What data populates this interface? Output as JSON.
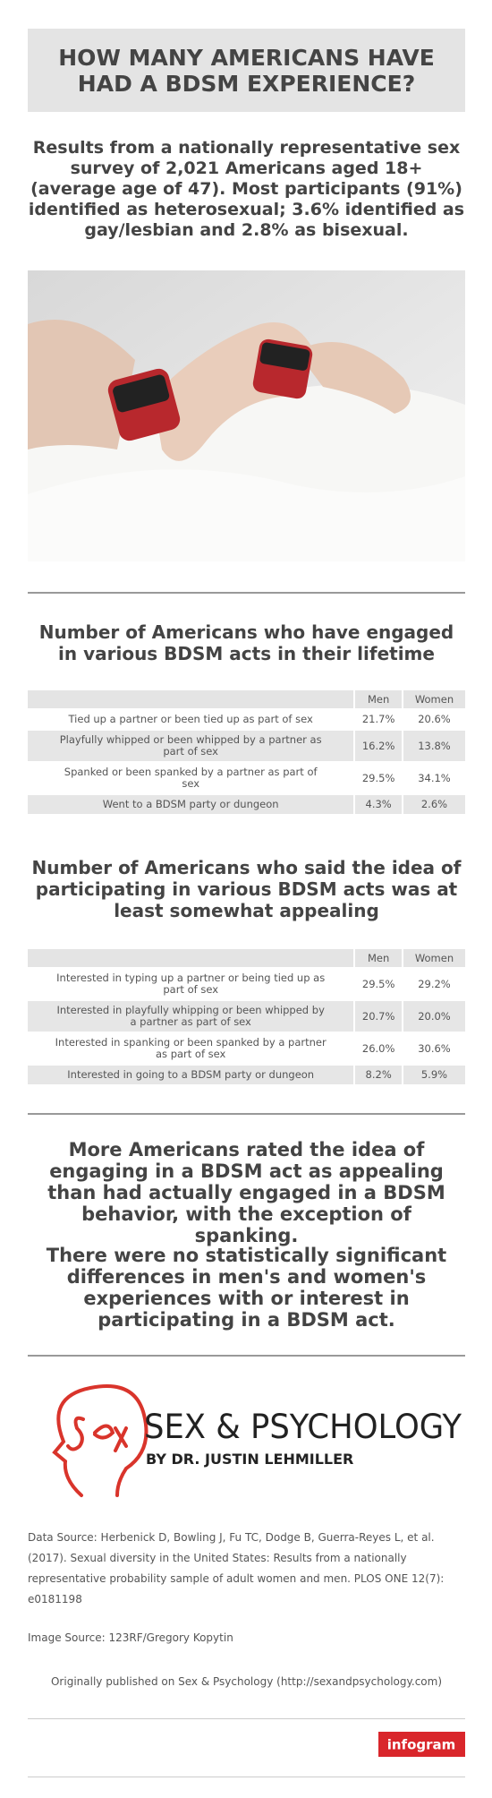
{
  "header": {
    "title": "HOW MANY AMERICANS HAVE HAD A BDSM EXPERIENCE?"
  },
  "intro": "Results from a nationally representative sex survey of 2,021 Americans aged 18+ (average age of 47). Most participants (91%) identified as heterosexual; 3.6% identified as gay/lesbian and 2.8% as bisexual.",
  "tables": [
    {
      "title": "Number of Americans who have engaged in various BDSM acts in their lifetime",
      "columns": [
        "Men",
        "Women"
      ],
      "rows": [
        [
          "Tied up a partner or been tied up as part of sex",
          "21.7%",
          "20.6%"
        ],
        [
          "Playfully whipped or been whipped by a partner as part of sex",
          "16.2%",
          "13.8%"
        ],
        [
          "Spanked or been spanked by a partner as part of sex",
          "29.5%",
          "34.1%"
        ],
        [
          "Went to a BDSM party or dungeon",
          "4.3%",
          "2.6%"
        ]
      ]
    },
    {
      "title": "Number of Americans who said the idea of participating in various BDSM acts was at least somewhat appealing",
      "columns": [
        "Men",
        "Women"
      ],
      "rows": [
        [
          "Interested in typing up a partner or being tied up as part of sex",
          "29.5%",
          "29.2%"
        ],
        [
          "Interested in playfully whipping or been whipped by a partner as part of sex",
          "20.7%",
          "20.0%"
        ],
        [
          "Interested in spanking or been spanked by a partner as part of sex",
          "26.0%",
          "30.6%"
        ],
        [
          "Interested in going to a BDSM party or dungeon",
          "8.2%",
          "5.9%"
        ]
      ]
    }
  ],
  "conclusions": [
    "More Americans rated the idea of engaging in a BDSM act as appealing than had actually engaged in a BDSM behavior, with the exception of spanking.",
    "There were no statistically significant differences in men's and women's experiences with or interest in participating in a BDSM act."
  ],
  "logo": {
    "name": "SEX & PSYCHOLOGY",
    "byline": "BY DR. JUSTIN LEHMILLER"
  },
  "footer": {
    "data_source": "Data Source: Herbenick D, Bowling J, Fu TC, Dodge B, Guerra-Reyes L, et al. (2017). Sexual diversity in the United States: Results from a nationally representative probability sample of adult women and men. PLOS ONE 12(7): e0181198",
    "image_source": "Image Source: 123RF/Gregory Kopytin",
    "published": "Originally published on Sex & Psychology (http://sexandpsychology.com)",
    "badge": "infogram"
  }
}
